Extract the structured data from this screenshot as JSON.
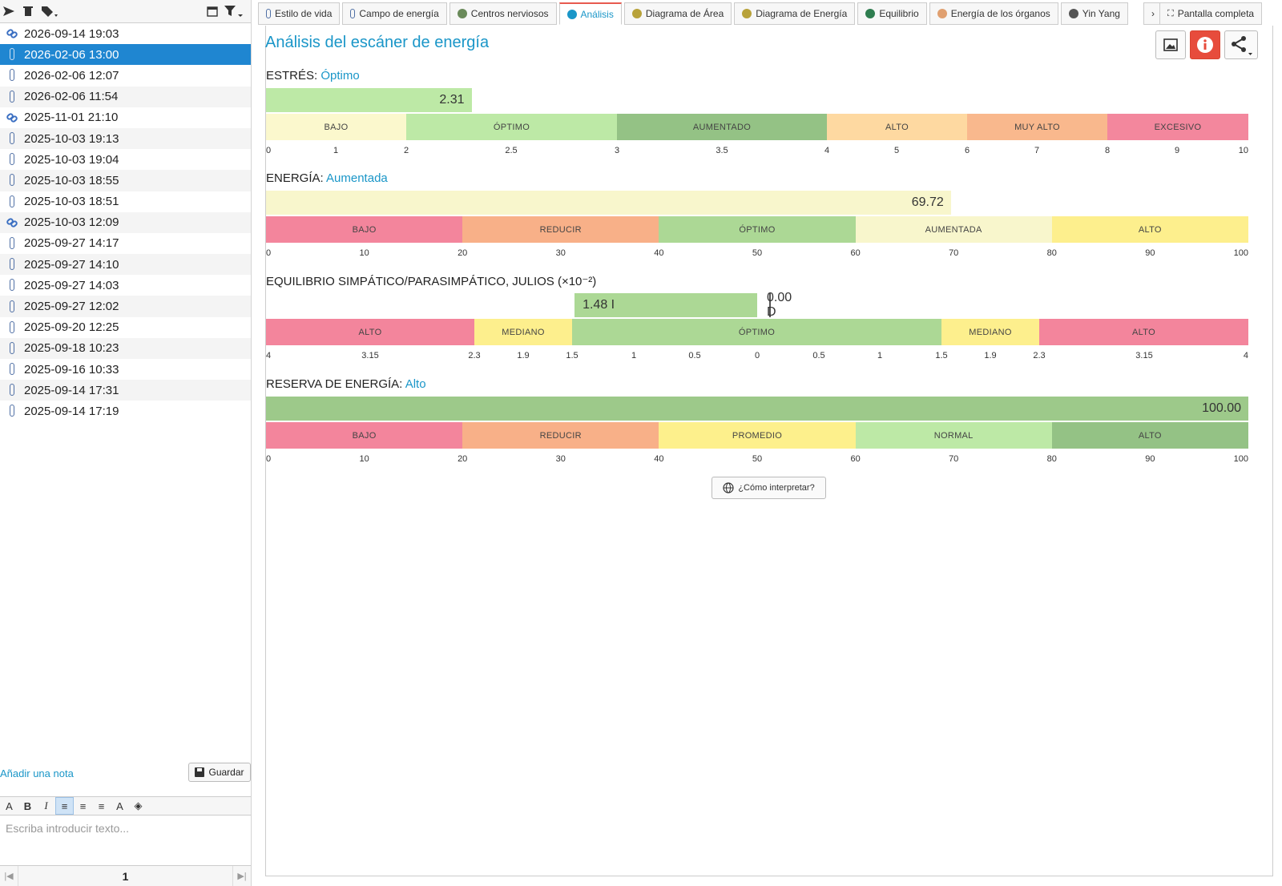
{
  "left": {
    "records": [
      {
        "date": "2026-09-14 19:03",
        "icon": "link-icon"
      },
      {
        "date": "2026-02-06 13:00",
        "icon": "paperclip-icon",
        "selected": true
      },
      {
        "date": "2026-02-06 12:07",
        "icon": "paperclip-icon"
      },
      {
        "date": "2026-02-06 11:54",
        "icon": "paperclip-icon"
      },
      {
        "date": "2025-11-01 21:10",
        "icon": "link-icon"
      },
      {
        "date": "2025-10-03 19:13",
        "icon": "paperclip-icon"
      },
      {
        "date": "2025-10-03 19:04",
        "icon": "paperclip-icon"
      },
      {
        "date": "2025-10-03 18:55",
        "icon": "paperclip-icon"
      },
      {
        "date": "2025-10-03 18:51",
        "icon": "paperclip-icon"
      },
      {
        "date": "2025-10-03 12:09",
        "icon": "link-icon"
      },
      {
        "date": "2025-09-27 14:17",
        "icon": "paperclip-icon"
      },
      {
        "date": "2025-09-27 14:10",
        "icon": "paperclip-icon"
      },
      {
        "date": "2025-09-27 14:03",
        "icon": "paperclip-icon"
      },
      {
        "date": "2025-09-27 12:02",
        "icon": "paperclip-icon"
      },
      {
        "date": "2025-09-20 12:25",
        "icon": "paperclip-icon"
      },
      {
        "date": "2025-09-18 10:23",
        "icon": "paperclip-icon"
      },
      {
        "date": "2025-09-16 10:33",
        "icon": "paperclip-icon"
      },
      {
        "date": "2025-09-14 17:31",
        "icon": "paperclip-icon"
      },
      {
        "date": "2025-09-14 17:19",
        "icon": "paperclip-icon"
      }
    ],
    "add_note": "Añadir una nota",
    "save_label": "Guardar",
    "editor_placeholder": "Escriba introducir texto...",
    "page": "1"
  },
  "tabs": [
    {
      "label": "Estilo de vida",
      "icon": "paperclip-icon"
    },
    {
      "label": "Campo de energía",
      "icon": "paperclip-icon"
    },
    {
      "label": "Centros nerviosos",
      "icon": "body-icon"
    },
    {
      "label": "Análisis",
      "icon": "bars-icon",
      "active": true
    },
    {
      "label": "Diagrama de Área",
      "icon": "aura-icon"
    },
    {
      "label": "Diagrama de Energía",
      "icon": "aura-icon"
    },
    {
      "label": "Equilibrio",
      "icon": "scale-icon"
    },
    {
      "label": "Energía de los órganos",
      "icon": "lungs-icon"
    },
    {
      "label": "Yin Yang",
      "icon": "yinyang-icon"
    }
  ],
  "fullscreen_label": "Pantalla completa",
  "title": "Análisis del escáner de energía",
  "sections": {
    "stress": {
      "label": "ESTRÉS:",
      "status": "Óptimo",
      "value": 2.31,
      "value_text": "2.31",
      "segments": [
        {
          "label": "BAJO",
          "color": "#fbf8cd"
        },
        {
          "label": "ÓPTIMO",
          "color": "#bde9a6"
        },
        {
          "label": "AUMENTADO",
          "color": "#94c285"
        },
        {
          "label": "ALTO",
          "color": "#fed9a1"
        },
        {
          "label": "MUY ALTO",
          "color": "#f9b88d"
        },
        {
          "label": "EXCESIVO",
          "color": "#f3879d"
        }
      ],
      "ticks": [
        "0",
        "1",
        "2",
        "2.5",
        "3",
        "3.5",
        "4",
        "5",
        "6",
        "7",
        "8",
        "9",
        "10"
      ]
    },
    "energy": {
      "label": "ENERGÍA:",
      "status": "Aumentada",
      "value": 69.72,
      "value_text": "69.72",
      "segments": [
        {
          "label": "BAJO",
          "color": "#f3859c"
        },
        {
          "label": "REDUCIR",
          "color": "#f8b088"
        },
        {
          "label": "ÓPTIMO",
          "color": "#acd895"
        },
        {
          "label": "AUMENTADA",
          "color": "#f8f6cc"
        },
        {
          "label": "ALTO",
          "color": "#fdef8d"
        }
      ],
      "ticks": [
        "0",
        "10",
        "20",
        "30",
        "40",
        "50",
        "60",
        "70",
        "80",
        "90",
        "100"
      ]
    },
    "balance": {
      "label": "EQUILIBRIO SIMPÁTICO/PARASIMPÁTICO, JULIOS (×10⁻²)",
      "left_value": 1.48,
      "left_text": "1.48 I",
      "right_value": 0.0,
      "right_text": "0.00 D",
      "segments": [
        {
          "label": "ALTO",
          "color": "#f3859c"
        },
        {
          "label": "MEDIANO",
          "color": "#fdef8d"
        },
        {
          "label": "ÓPTIMO",
          "color": "#acd895"
        },
        {
          "label": "MEDIANO",
          "color": "#fdef8d"
        },
        {
          "label": "ALTO",
          "color": "#f3859c"
        }
      ],
      "ticks": [
        "4",
        "3.15",
        "2.3",
        "1.9",
        "1.5",
        "1",
        "0.5",
        "0",
        "0.5",
        "1",
        "1.5",
        "1.9",
        "2.3",
        "3.15",
        "4"
      ]
    },
    "reserve": {
      "label": "RESERVA DE ENERGÍA:",
      "status": "Alto",
      "value": 100.0,
      "value_text": "100.00",
      "segments": [
        {
          "label": "BAJO",
          "color": "#f3859c"
        },
        {
          "label": "REDUCIR",
          "color": "#f8b088"
        },
        {
          "label": "PROMEDIO",
          "color": "#fdf08c"
        },
        {
          "label": "NORMAL",
          "color": "#bde9a6"
        },
        {
          "label": "ALTO",
          "color": "#94c285"
        }
      ],
      "ticks": [
        "0",
        "10",
        "20",
        "30",
        "40",
        "50",
        "60",
        "70",
        "80",
        "90",
        "100"
      ]
    }
  },
  "interpret_label": "¿Cómo interpretar?",
  "colors": {
    "accent": "#1a96c8",
    "selected_row": "#1f86d1",
    "info_button": "#e74c3c"
  }
}
